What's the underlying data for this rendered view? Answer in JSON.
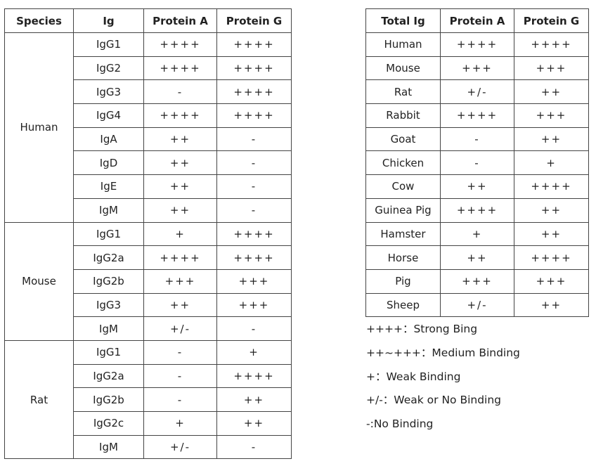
{
  "left_table": {
    "headers": [
      "Species",
      "Ig",
      "Protein A",
      "Protein G"
    ],
    "groups": [
      {
        "species": "Human",
        "rows": [
          [
            "IgG1",
            "++++",
            "++++"
          ],
          [
            "IgG2",
            "++++",
            "++++"
          ],
          [
            "IgG3",
            "-",
            "++++"
          ],
          [
            "IgG4",
            "++++",
            "++++"
          ],
          [
            "IgA",
            "++",
            "-"
          ],
          [
            "IgD",
            "++",
            "-"
          ],
          [
            "IgE",
            "++",
            "-"
          ],
          [
            "IgM",
            "++",
            "-"
          ]
        ]
      },
      {
        "species": "Mouse",
        "rows": [
          [
            "IgG1",
            "+",
            "++++"
          ],
          [
            "IgG2a",
            "++++",
            "++++"
          ],
          [
            "IgG2b",
            "+++",
            "+++"
          ],
          [
            "IgG3",
            "++",
            "+++"
          ],
          [
            "IgM",
            "+/-",
            "-"
          ]
        ]
      },
      {
        "species": "Rat",
        "rows": [
          [
            "IgG1",
            "-",
            "+"
          ],
          [
            "IgG2a",
            "-",
            "++++"
          ],
          [
            "IgG2b",
            "-",
            "++"
          ],
          [
            "IgG2c",
            "+",
            "++"
          ],
          [
            "IgM",
            "+/-",
            "-"
          ]
        ]
      }
    ]
  },
  "right_table": {
    "headers": [
      "Total Ig",
      "Protein A",
      "Protein G"
    ],
    "rows": [
      [
        "Human",
        "++++",
        "++++"
      ],
      [
        "Mouse",
        "+++",
        "+++"
      ],
      [
        "Rat",
        "+/-",
        "++"
      ],
      [
        "Rabbit",
        "++++",
        "+++"
      ],
      [
        "Goat",
        "-",
        "++"
      ],
      [
        "Chicken",
        "-",
        "+"
      ],
      [
        "Cow",
        "++",
        "++++"
      ],
      [
        "Guinea Pig",
        "++++",
        "++"
      ],
      [
        "Hamster",
        "+",
        "++"
      ],
      [
        "Horse",
        "++",
        "++++"
      ],
      [
        "Pig",
        "+++",
        "+++"
      ],
      [
        "Sheep",
        "+/-",
        "++"
      ]
    ]
  },
  "legend": [
    "++++：Strong Bing",
    "++~+++：Medium Binding",
    "+：Weak Binding",
    "+/-：Weak or No Binding",
    "-:No Binding"
  ]
}
